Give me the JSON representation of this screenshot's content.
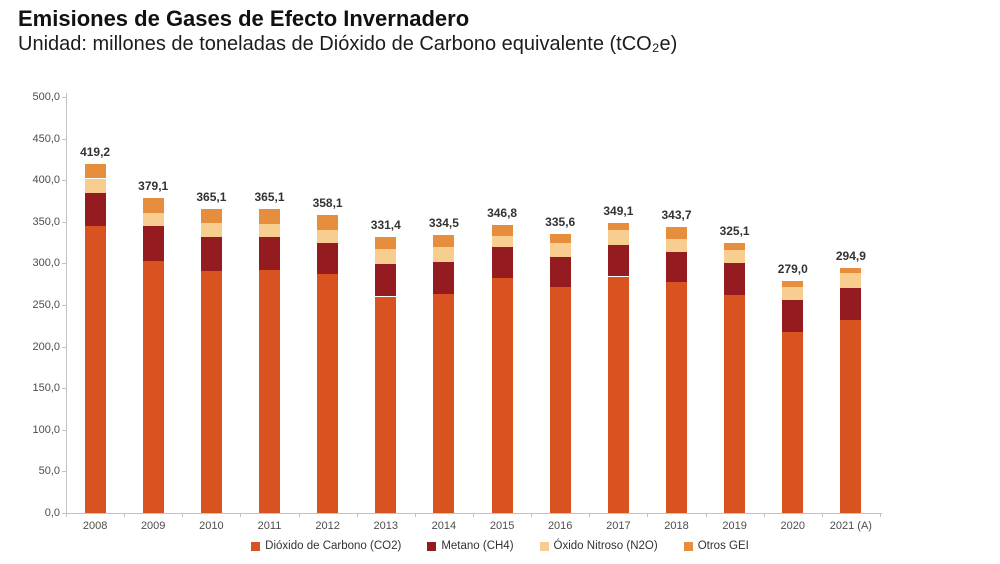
{
  "header": {
    "title": "Emisiones de Gases de Efecto Invernadero",
    "subtitle": "Unidad: millones de toneladas de Dióxido de Carbono equivalente (tCO₂e)"
  },
  "chart_data": {
    "type": "bar",
    "stacked": true,
    "title": "Emisiones de Gases de Efecto Invernadero",
    "unit_label": "millones de toneladas de Dióxido de Carbono equivalente (tCO₂e)",
    "categories": [
      "2008",
      "2009",
      "2010",
      "2011",
      "2012",
      "2013",
      "2014",
      "2015",
      "2016",
      "2017",
      "2018",
      "2019",
      "2020",
      "2021 (A)"
    ],
    "series": [
      {
        "name": "Dióxido de Carbono (CO2)",
        "color": "#d8531f",
        "values": [
          344.9,
          303.0,
          291.0,
          292.2,
          287.4,
          260.2,
          263.5,
          282.3,
          272.2,
          284.2,
          278.2,
          262.3,
          217.1,
          232.3
        ]
      },
      {
        "name": "Metano (CH4)",
        "color": "#941b1f",
        "values": [
          39.2,
          42.3,
          41.1,
          39.9,
          37.5,
          38.8,
          38.7,
          37.8,
          35.9,
          38.0,
          35.9,
          37.9,
          39.2,
          38.0
        ]
      },
      {
        "name": "Óxido Nitroso (N2O)",
        "color": "#f8cd90",
        "values": [
          17.9,
          14.8,
          16.0,
          14.8,
          15.2,
          18.0,
          17.9,
          13.2,
          16.1,
          17.9,
          15.2,
          16.0,
          15.9,
          17.9
        ]
      },
      {
        "name": "Otros GEI",
        "color": "#e78d3e",
        "values": [
          17.2,
          19.0,
          17.0,
          18.2,
          18.0,
          14.4,
          14.4,
          13.5,
          11.4,
          9.0,
          14.4,
          8.9,
          6.8,
          6.7
        ]
      }
    ],
    "totals": [
      419.2,
      379.1,
      365.1,
      365.1,
      358.1,
      331.4,
      334.5,
      346.8,
      335.6,
      349.1,
      343.7,
      325.1,
      279.0,
      294.9
    ],
    "totals_labels": [
      "419,2",
      "379,1",
      "365,1",
      "365,1",
      "358,1",
      "331,4",
      "334,5",
      "346,8",
      "335,6",
      "349,1",
      "343,7",
      "325,1",
      "279,0",
      "294,9"
    ],
    "ylim": [
      0,
      500
    ],
    "y_tick_step": 50,
    "y_tick_labels": [
      "0,0",
      "50,0",
      "100,0",
      "150,0",
      "200,0",
      "250,0",
      "300,0",
      "350,0",
      "400,0",
      "450,0",
      "500,0"
    ],
    "grid": false,
    "legend_position": "bottom"
  }
}
